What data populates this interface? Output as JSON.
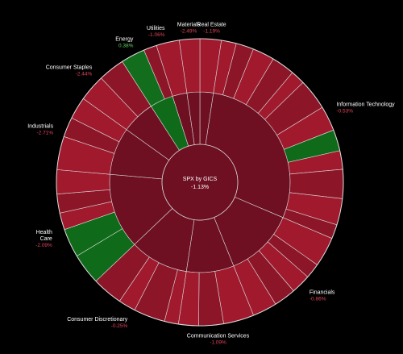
{
  "chart_data": {
    "type": "sunburst",
    "title": "SPX by GICS",
    "total_change": "-1.13%",
    "colors": {
      "down": "#8c1628",
      "down_strong": "#a0192d",
      "down_inner": "#6e0f22",
      "up": "#0f6b1a",
      "up_strong": "#126e1c"
    },
    "sectors": [
      {
        "name": "Real Estate",
        "change": "-1.19%",
        "weight": 2.4,
        "up": false
      },
      {
        "name": "Information Technology",
        "change": "-0.53%",
        "weight": 29.0,
        "up": false
      },
      {
        "name": "Financials",
        "change": "-0.86%",
        "weight": 12.5,
        "up": false
      },
      {
        "name": "Communication Services",
        "change": "-1.09%",
        "weight": 8.5,
        "up": false
      },
      {
        "name": "Consumer Discretionary",
        "change": "-0.25%",
        "weight": 10.5,
        "up": false
      },
      {
        "name": "Health Care",
        "change": "-2.09%",
        "weight": 13.5,
        "up": false
      },
      {
        "name": "Industrials",
        "change": "-2.71%",
        "weight": 8.5,
        "up": false
      },
      {
        "name": "Consumer Staples",
        "change": "-2.44%",
        "weight": 6.0,
        "up": false
      },
      {
        "name": "Energy",
        "change": "0.38%",
        "weight": 4.2,
        "up": true
      },
      {
        "name": "Utilities",
        "change": "-1.06%",
        "weight": 2.6,
        "up": false
      },
      {
        "name": "Materials",
        "change": "-2.49%",
        "weight": 2.3,
        "up": false
      }
    ]
  }
}
